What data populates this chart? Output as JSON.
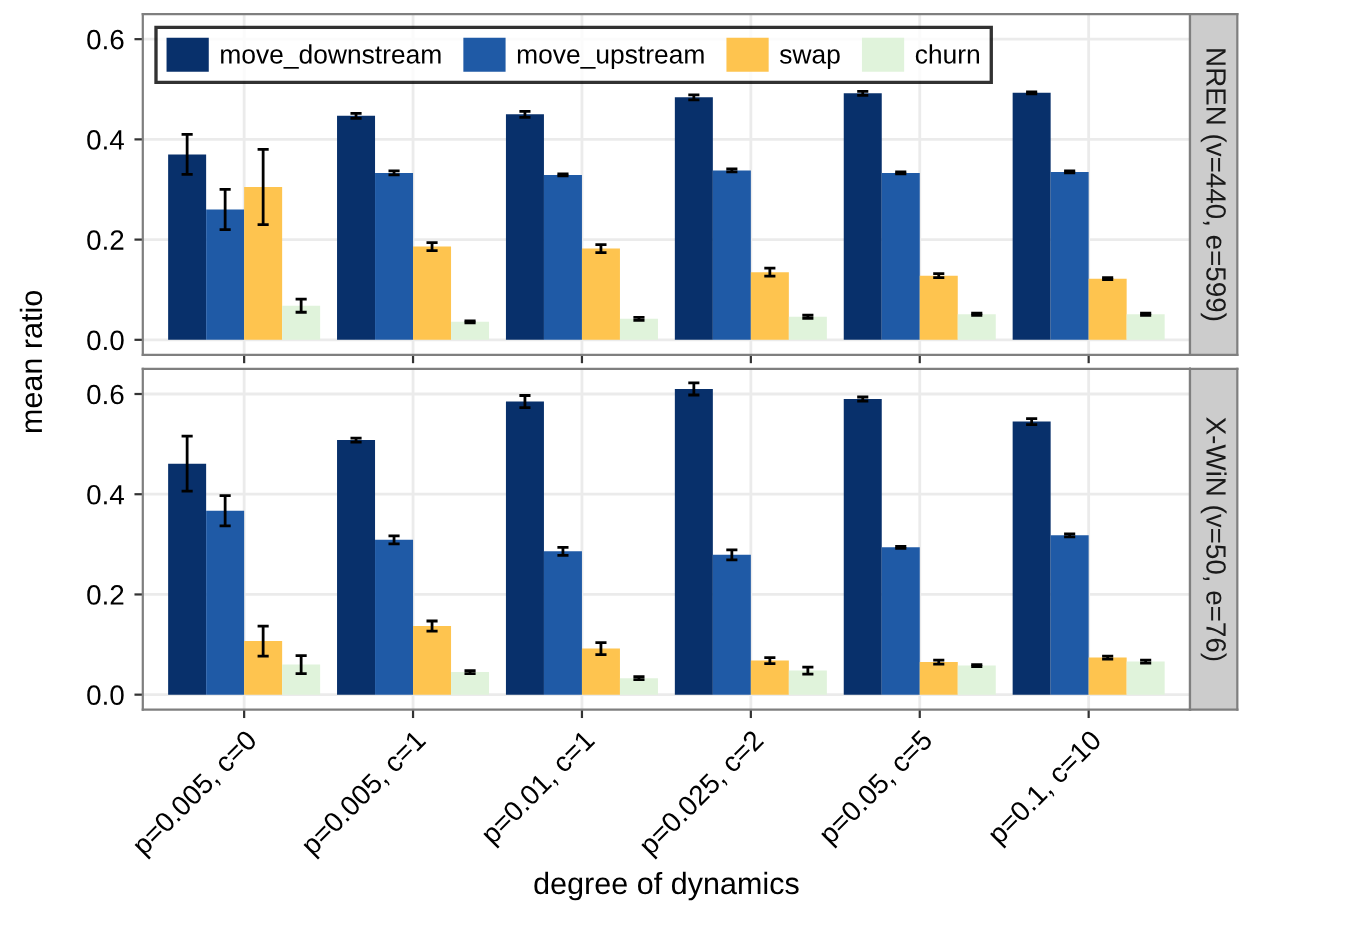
{
  "chart_data": [
    {
      "type": "bar",
      "title": "NREN (v=440, e=599)",
      "ylabel": "mean ratio",
      "categories": [
        null,
        null,
        null,
        null,
        null,
        null
      ],
      "series": [
        {
          "name": "move_downstream",
          "color": "#08306b",
          "values": [
            0.37,
            0.447,
            0.45,
            0.484,
            0.492,
            0.493
          ],
          "errors": [
            0.04,
            0.005,
            0.006,
            0.005,
            0.004,
            0.002
          ]
        },
        {
          "name": "move_upstream",
          "color": "#1f5aa6",
          "values": [
            0.26,
            0.333,
            0.329,
            0.338,
            0.333,
            0.335
          ],
          "errors": [
            0.04,
            0.004,
            0.002,
            0.003,
            0.002,
            0.002
          ]
        },
        {
          "name": "swap",
          "color": "#fec44f",
          "values": [
            0.305,
            0.186,
            0.182,
            0.135,
            0.128,
            0.122
          ],
          "errors": [
            0.075,
            0.008,
            0.008,
            0.008,
            0.004,
            0.002
          ]
        },
        {
          "name": "churn",
          "color": "#e0f3db",
          "values": [
            0.068,
            0.036,
            0.042,
            0.046,
            0.051,
            0.051
          ],
          "errors": [
            0.013,
            0.002,
            0.003,
            0.003,
            0.002,
            0.002
          ]
        }
      ],
      "ylim": [
        -0.03,
        0.65
      ],
      "yticks": [
        {
          "value": 0,
          "label": "0.0"
        },
        0.2,
        0.4,
        0.6
      ],
      "grid": true,
      "legend": "top left",
      "tick_labels": "y"
    },
    {
      "type": "bar",
      "title": "X-WiN (v=50, e=76)",
      "xlabel": "degree of dynamics",
      "categories": [
        "p=0.005, c=0",
        "p=0.005, c=1",
        "p=0.01, c=1",
        "p=0.025, c=2",
        "p=0.05, c=5",
        "p=0.1, c=10"
      ],
      "series": [
        {
          "color": "#08306b",
          "values": [
            0.461,
            0.508,
            0.585,
            0.61,
            0.59,
            0.545
          ],
          "errors": [
            0.055,
            0.004,
            0.012,
            0.012,
            0.004,
            0.006
          ]
        },
        {
          "color": "#1f5aa6",
          "values": [
            0.367,
            0.309,
            0.286,
            0.279,
            0.294,
            0.318
          ],
          "errors": [
            0.03,
            0.008,
            0.008,
            0.01,
            0.002,
            0.003
          ]
        },
        {
          "color": "#fec44f",
          "values": [
            0.107,
            0.137,
            0.092,
            0.068,
            0.065,
            0.074
          ],
          "errors": [
            0.03,
            0.01,
            0.012,
            0.006,
            0.004,
            0.003
          ]
        },
        {
          "color": "#e0f3db",
          "values": [
            0.06,
            0.045,
            0.033,
            0.048,
            0.058,
            0.066
          ],
          "errors": [
            0.018,
            0.003,
            0.003,
            0.007,
            0.002,
            0.003
          ]
        }
      ],
      "ylim": [
        -0.03,
        0.65
      ],
      "yticks": [
        {
          "value": 0,
          "label": "0.0"
        },
        0.2,
        0.4,
        0.6
      ],
      "grid": true
    }
  ]
}
